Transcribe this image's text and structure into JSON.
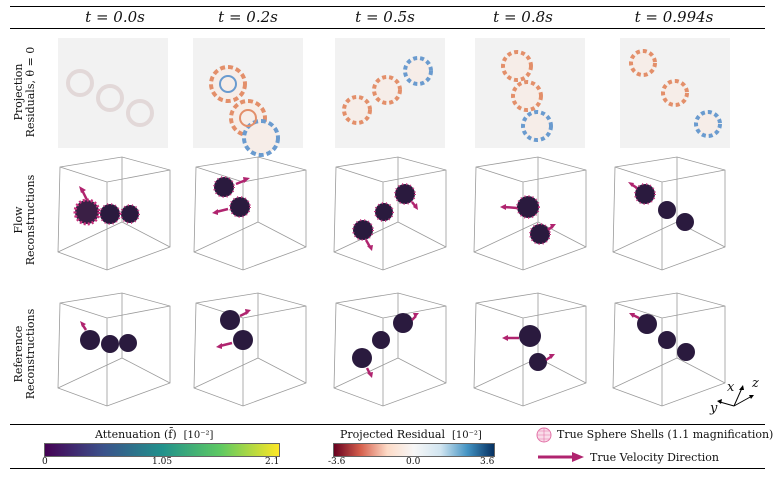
{
  "columns": [
    "t = 0.0s",
    "t = 0.2s",
    "t = 0.5s",
    "t = 0.8s",
    "t = 0.994s"
  ],
  "rows": {
    "projection": [
      "Projection",
      "Residuals, θ = 0"
    ],
    "flow": [
      "Flow",
      "Reconstructions"
    ],
    "reference": [
      "Reference",
      "Reconstructions"
    ]
  },
  "legend": {
    "attenuation": {
      "title": "Attenuation (f̄)",
      "scale": "[10⁻²]",
      "ticks": [
        "0",
        "1.05",
        "2.1"
      ]
    },
    "residual": {
      "title": "Projected Residual",
      "scale": "[10⁻²]",
      "ticks": [
        "-3.6",
        "0.0",
        "3.6"
      ]
    },
    "sphere_shells": "True Sphere Shells (1.1 magnification)",
    "velocity": "True Velocity Direction"
  },
  "axes_triad": {
    "x": "x",
    "y": "y",
    "z": "z"
  },
  "colors": {
    "sphere": "#2a1a3e",
    "highlight": "#c8307e",
    "arrow": "#b0246f",
    "residual_neg": "#d0623f",
    "residual_pos": "#4a86c0"
  }
}
